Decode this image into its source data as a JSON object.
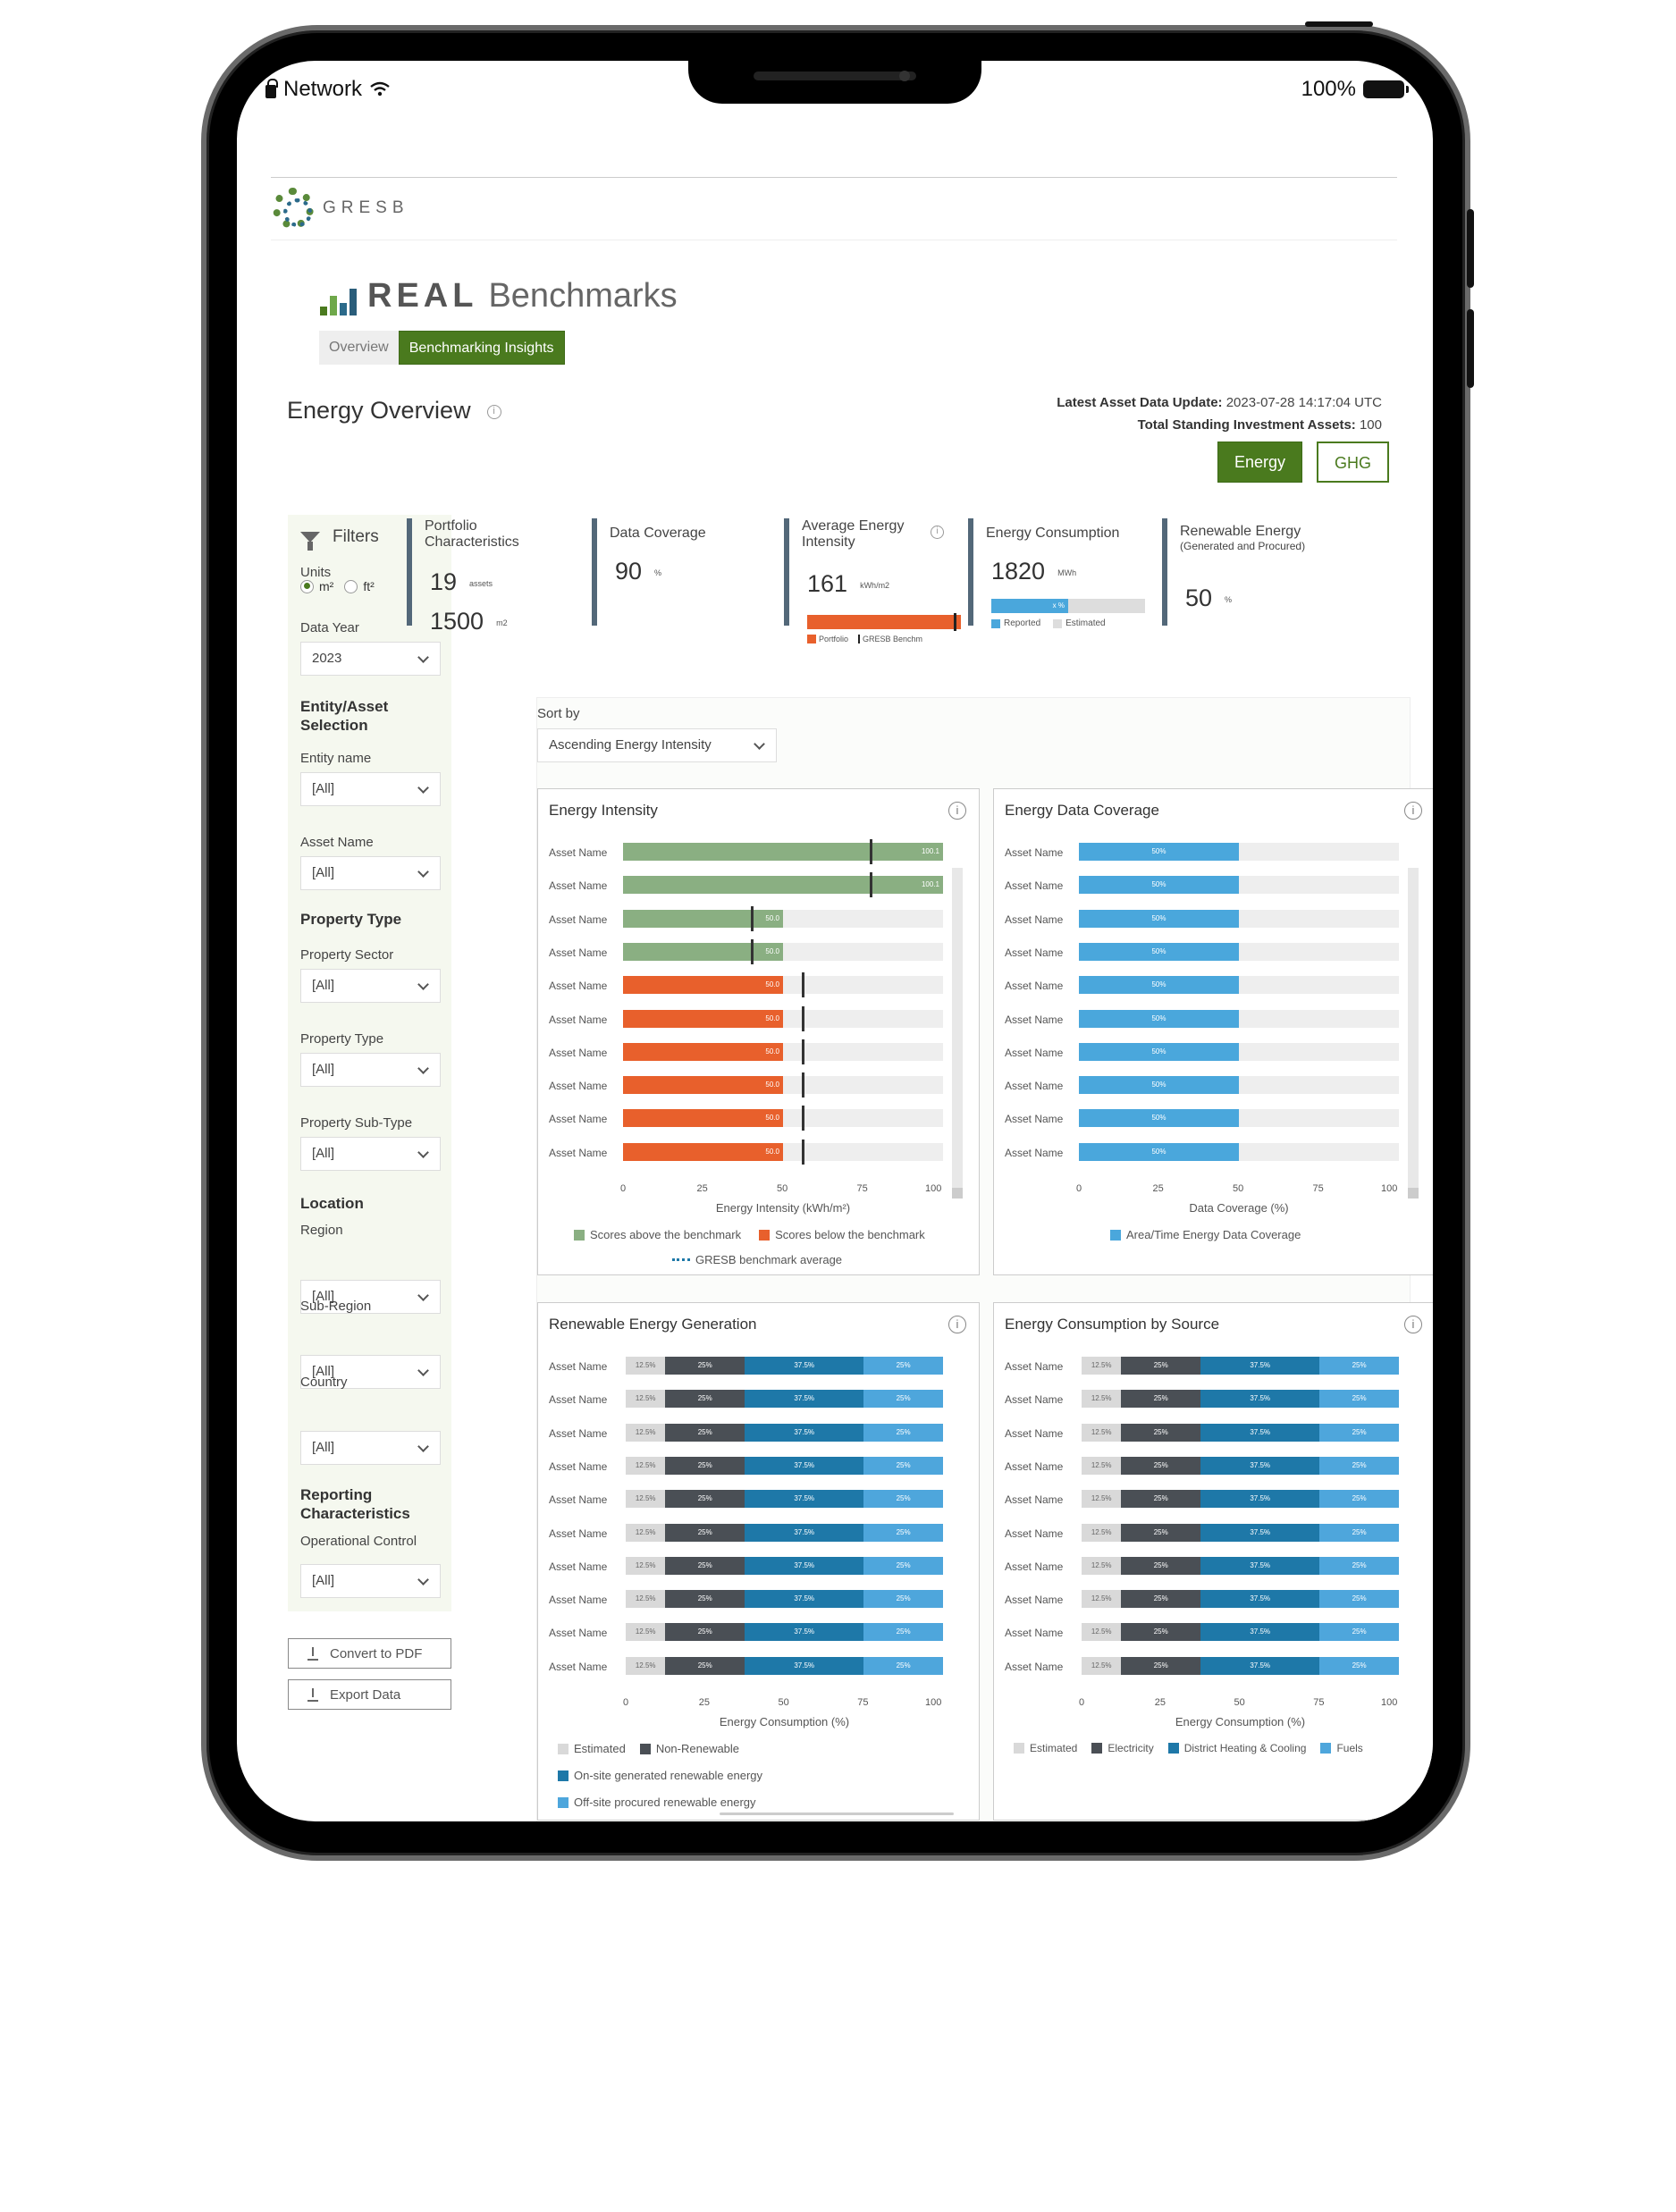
{
  "status_bar": {
    "network": "Network",
    "battery": "100%"
  },
  "logo": {
    "text": "GRESB"
  },
  "brand": {
    "real": "REAL",
    "benchmarks": "Benchmarks"
  },
  "tabs": [
    {
      "label": "Overview",
      "active": false
    },
    {
      "label": "Benchmarking Insights",
      "active": true
    }
  ],
  "page": {
    "title": "Energy Overview"
  },
  "meta": {
    "latest_label": "Latest Asset Data Update:",
    "latest_value": "2023-07-28 14:17:04 UTC",
    "total_label": "Total Standing Investment Assets:",
    "total_value": "100"
  },
  "switch": {
    "energy": "Energy",
    "ghg": "GHG"
  },
  "filters": {
    "title": "Filters",
    "units_label": "Units",
    "unit_m2": "m²",
    "unit_ft2": "ft²",
    "data_year_label": "Data Year",
    "data_year": "2023",
    "entity_heading": "Entity/Asset Selection",
    "entity_name_label": "Entity name",
    "entity_name": "[All]",
    "asset_name_label": "Asset Name",
    "asset_name": "[All]",
    "property_type_heading": "Property Type",
    "property_sector_label": "Property Sector",
    "property_sector": "[All]",
    "property_type_label": "Property Type",
    "property_type": "[All]",
    "property_subtype_label": "Property Sub-Type",
    "property_subtype": "[All]",
    "location_heading": "Location",
    "region_label": "Region",
    "region": "[All]",
    "subregion_label": "Sub-Region",
    "subregion": "[All]",
    "country_label": "Country",
    "country": "[All]",
    "reporting_heading": "Reporting Characteristics",
    "operational_label": "Operational Control",
    "operational": "[All]"
  },
  "actions": {
    "pdf": "Convert to PDF",
    "export": "Export Data"
  },
  "kpis": {
    "portfolio": {
      "title": "Portfolio Characteristics",
      "assets_value": "19",
      "assets_unit": "assets",
      "area_value": "1500",
      "area_unit": "m2"
    },
    "coverage": {
      "title": "Data Coverage",
      "value": "90",
      "unit": "%"
    },
    "intensity": {
      "title": "Average Energy Intensity",
      "value": "161",
      "unit": "kWh/m2",
      "legend_portfolio": "Portfolio",
      "legend_benchmark": "GRESB Benchm"
    },
    "consumption": {
      "title": "Energy Consumption",
      "value": "1820",
      "unit": "MWh",
      "bar_label": "x %",
      "legend_reported": "Reported",
      "legend_estimated": "Estimated"
    },
    "renewable": {
      "title": "Renewable Energy",
      "subtitle": "(Generated and Procured)",
      "value": "50",
      "unit": "%"
    }
  },
  "sort": {
    "label": "Sort by",
    "value": "Ascending Energy Intensity"
  },
  "colors": {
    "green": "#8aaf82",
    "orange": "#e8602c",
    "blue": "#4aa7dc",
    "estimated": "#d9d9d9",
    "dark": "#4a4f55",
    "teal": "#1e78a8",
    "light_blue": "#4ea6dc",
    "accent": "#4a7a1e"
  },
  "chart_data": [
    {
      "type": "bar",
      "title": "Energy Intensity",
      "categories": [
        "Asset Name",
        "Asset Name",
        "Asset Name",
        "Asset Name",
        "Asset Name",
        "Asset Name",
        "Asset Name",
        "Asset Name",
        "Asset Name",
        "Asset Name"
      ],
      "values": [
        100.1,
        100.1,
        50.0,
        50.0,
        50.0,
        50.0,
        50.0,
        50.0,
        50.0,
        50.0
      ],
      "value_labels": [
        "100.1",
        "100.1",
        "50.0",
        "50.0",
        "50.0",
        "50.0",
        "50.0",
        "50.0",
        "50.0",
        "50.0"
      ],
      "above_benchmark": [
        true,
        true,
        true,
        true,
        false,
        false,
        false,
        false,
        false,
        false
      ],
      "benchmark": [
        77,
        77,
        40,
        40,
        56,
        56,
        56,
        56,
        56,
        56
      ],
      "xlim": [
        0,
        100
      ],
      "xticks": [
        "0",
        "25",
        "50",
        "75",
        "100"
      ],
      "xlabel": "Energy Intensity (kWh/m²)",
      "legend": [
        "Scores above the benchmark",
        "Scores below the benchmark",
        "GRESB benchmark average"
      ]
    },
    {
      "type": "bar",
      "title": "Energy Data Coverage",
      "categories": [
        "Asset Name",
        "Asset Name",
        "Asset Name",
        "Asset Name",
        "Asset Name",
        "Asset Name",
        "Asset Name",
        "Asset Name",
        "Asset Name",
        "Asset Name"
      ],
      "values": [
        50,
        50,
        50,
        50,
        50,
        50,
        50,
        50,
        50,
        50
      ],
      "value_labels": [
        "50%",
        "50%",
        "50%",
        "50%",
        "50%",
        "50%",
        "50%",
        "50%",
        "50%",
        "50%"
      ],
      "xlim": [
        0,
        100
      ],
      "xticks": [
        "0",
        "25",
        "50",
        "75",
        "100"
      ],
      "xlabel": "Data Coverage (%)",
      "legend": [
        "Area/Time Energy Data Coverage"
      ]
    },
    {
      "type": "bar",
      "title": "Renewable Energy Generation",
      "categories": [
        "Asset Name",
        "Asset Name",
        "Asset Name",
        "Asset Name",
        "Asset Name",
        "Asset Name",
        "Asset Name",
        "Asset Name",
        "Asset Name",
        "Asset Name"
      ],
      "series": [
        {
          "name": "Estimated",
          "values": [
            12.5,
            12.5,
            12.5,
            12.5,
            12.5,
            12.5,
            12.5,
            12.5,
            12.5,
            12.5
          ],
          "labels": [
            "12.5%",
            "12.5%",
            "12.5%",
            "12.5%",
            "12.5%",
            "12.5%",
            "12.5%",
            "12.5%",
            "12.5%",
            "12.5%"
          ]
        },
        {
          "name": "Non-Renewable",
          "values": [
            25,
            25,
            25,
            25,
            25,
            25,
            25,
            25,
            25,
            25
          ],
          "labels": [
            "25%",
            "25%",
            "25%",
            "25%",
            "25%",
            "25%",
            "25%",
            "25%",
            "25%",
            "25%"
          ]
        },
        {
          "name": "On-site generated renewable energy",
          "values": [
            37.5,
            37.5,
            37.5,
            37.5,
            37.5,
            37.5,
            37.5,
            37.5,
            37.5,
            37.5
          ],
          "labels": [
            "37.5%",
            "37.5%",
            "37.5%",
            "37.5%",
            "37.5%",
            "37.5%",
            "37.5%",
            "37.5%",
            "37.5%",
            "37.5%"
          ]
        },
        {
          "name": "Off-site procured renewable energy",
          "values": [
            25,
            25,
            25,
            25,
            25,
            25,
            25,
            25,
            25,
            25
          ],
          "labels": [
            "25%",
            "25%",
            "25%",
            "25%",
            "25%",
            "25%",
            "25%",
            "25%",
            "25%",
            "25%"
          ]
        }
      ],
      "xlim": [
        0,
        100
      ],
      "xticks": [
        "0",
        "25",
        "50",
        "75",
        "100"
      ],
      "xlabel": "Energy Consumption (%)"
    },
    {
      "type": "bar",
      "title": "Energy Consumption by Source",
      "categories": [
        "Asset Name",
        "Asset Name",
        "Asset Name",
        "Asset Name",
        "Asset Name",
        "Asset Name",
        "Asset Name",
        "Asset Name",
        "Asset Name",
        "Asset Name"
      ],
      "series": [
        {
          "name": "Estimated",
          "values": [
            12.5,
            12.5,
            12.5,
            12.5,
            12.5,
            12.5,
            12.5,
            12.5,
            12.5,
            12.5
          ],
          "labels": [
            "12.5%",
            "12.5%",
            "12.5%",
            "12.5%",
            "12.5%",
            "12.5%",
            "12.5%",
            "12.5%",
            "12.5%",
            "12.5%"
          ]
        },
        {
          "name": "Electricity",
          "values": [
            25,
            25,
            25,
            25,
            25,
            25,
            25,
            25,
            25,
            25
          ],
          "labels": [
            "25%",
            "25%",
            "25%",
            "25%",
            "25%",
            "25%",
            "25%",
            "25%",
            "25%",
            "25%"
          ]
        },
        {
          "name": "District Heating & Cooling",
          "values": [
            37.5,
            37.5,
            37.5,
            37.5,
            37.5,
            37.5,
            37.5,
            37.5,
            37.5,
            37.5
          ],
          "labels": [
            "37.5%",
            "37.5%",
            "37.5%",
            "37.5%",
            "37.5%",
            "37.5%",
            "37.5%",
            "37.5%",
            "37.5%",
            "37.5%"
          ]
        },
        {
          "name": "Fuels",
          "values": [
            25,
            25,
            25,
            25,
            25,
            25,
            25,
            25,
            25,
            25
          ],
          "labels": [
            "25%",
            "25%",
            "25%",
            "25%",
            "25%",
            "25%",
            "25%",
            "25%",
            "25%",
            "25%"
          ]
        }
      ],
      "xlim": [
        0,
        100
      ],
      "xticks": [
        "0",
        "25",
        "50",
        "75",
        "100"
      ],
      "xlabel": "Energy Consumption (%)"
    }
  ]
}
